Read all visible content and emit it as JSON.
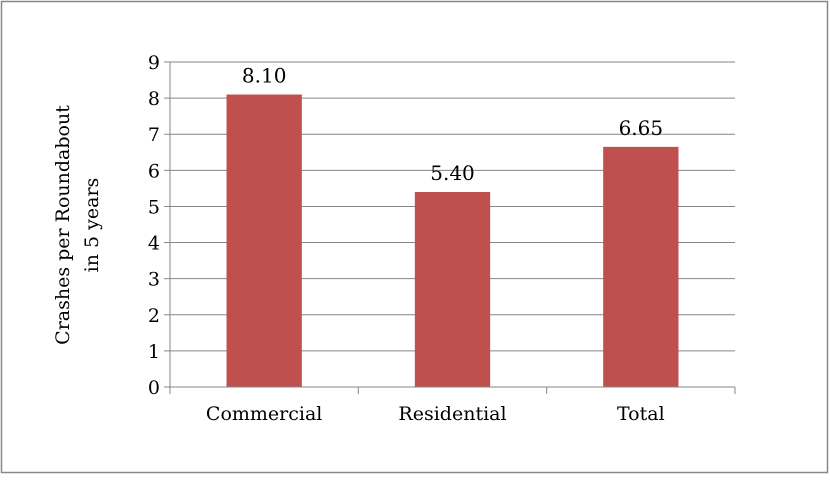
{
  "chart_data": {
    "type": "bar",
    "title": "",
    "xlabel": "",
    "ylabel_lines": [
      "Crashes per Roundabout",
      "in 5 years"
    ],
    "categories": [
      "Commercial",
      "Residential",
      "Total"
    ],
    "values": [
      8.1,
      5.4,
      6.65
    ],
    "data_labels": [
      "8.10",
      "5.40",
      "6.65"
    ],
    "ylim": [
      0,
      9
    ],
    "yticks": [
      "0",
      "1",
      "2",
      "3",
      "4",
      "5",
      "6",
      "7",
      "8",
      "9"
    ],
    "grid": "horizontal",
    "legend": "none",
    "bar_color": "#c0504d",
    "grid_color": "#868686"
  }
}
